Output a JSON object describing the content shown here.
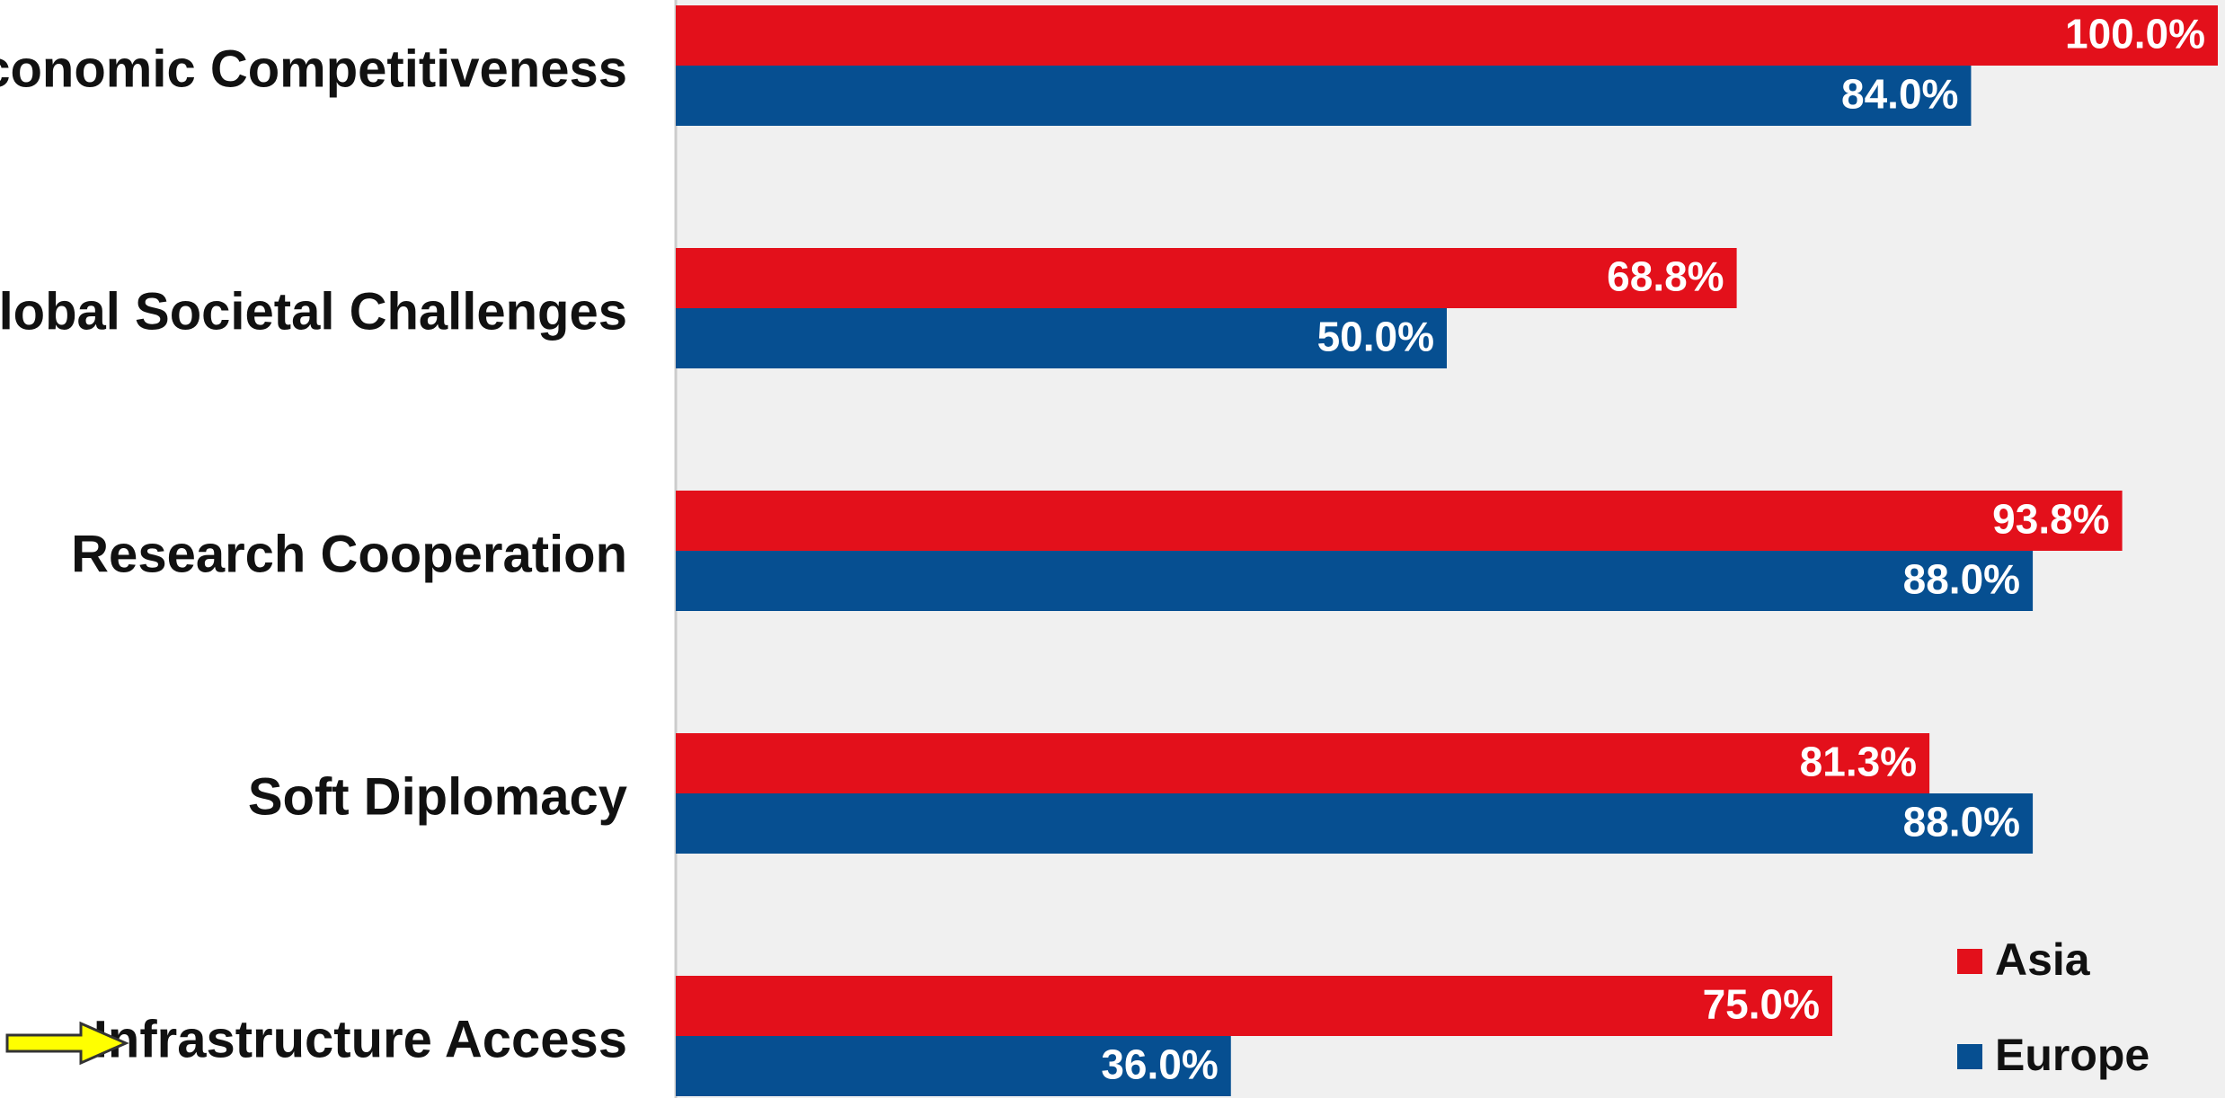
{
  "chart_data": {
    "type": "bar",
    "orientation": "horizontal",
    "categories": [
      "Economic Competitiveness",
      "Global Societal Challenges",
      "Research Cooperation",
      "Soft Diplomacy",
      "Infrastructure Access"
    ],
    "series": [
      {
        "name": "Asia",
        "color": "#e3101b",
        "values": [
          100.0,
          68.8,
          93.8,
          81.3,
          75.0
        ],
        "labels": [
          "100.0%",
          "68.8%",
          "93.8%",
          "81.3%",
          "75.0%"
        ]
      },
      {
        "name": "Europe",
        "color": "#064f91",
        "values": [
          84.0,
          50.0,
          88.0,
          88.0,
          36.0
        ],
        "labels": [
          "84.0%",
          "50.0%",
          "88.0%",
          "88.0%",
          "36.0%"
        ]
      }
    ],
    "xlim": [
      0,
      100
    ],
    "value_unit": "%",
    "legend_position": "bottom-right",
    "plot_background": "#f0f0f0",
    "highlighted_category": "Infrastructure Access",
    "highlight_marker": {
      "icon": "arrow-right-icon",
      "color": "#ffff00"
    }
  }
}
